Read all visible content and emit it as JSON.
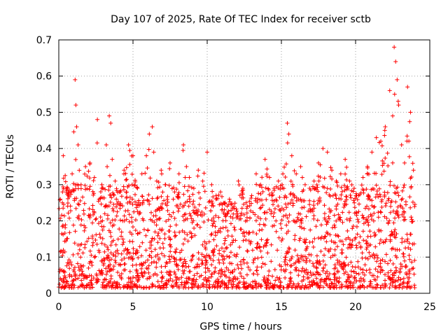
{
  "chart_data": {
    "type": "scatter",
    "title": "Day 107 of 2025, Rate Of TEC Index for receiver sctb",
    "xlabel": "GPS time / hours",
    "ylabel": "ROTI / TECUs",
    "xlim": [
      0,
      25
    ],
    "ylim": [
      0,
      0.7
    ],
    "xticks": [
      0,
      5,
      10,
      15,
      20,
      25
    ],
    "yticks": [
      0,
      0.1,
      0.2,
      0.3,
      0.4,
      0.5,
      0.6,
      0.7
    ],
    "xtick_labels": [
      "0",
      "5",
      "10",
      "15",
      "20",
      "25"
    ],
    "ytick_labels": [
      "0",
      "0.1",
      "0.2",
      "0.3",
      "0.4",
      "0.5",
      "0.6",
      "0.7"
    ],
    "grid": true,
    "legend": "none",
    "marker": "plus",
    "color": "#ff0000",
    "series": [
      {
        "x": [
          0.1,
          0.3,
          0.6,
          0.9,
          1.1,
          1.15,
          1.2,
          1.3,
          1.5,
          1.8,
          2.1,
          2.4,
          2.6,
          2.9,
          3.2,
          3.4,
          3.5,
          3.6,
          3.8,
          4.1,
          4.4,
          4.7,
          5.0,
          5.3,
          5.6,
          5.9,
          6.1,
          6.3,
          6.4,
          6.6,
          6.9,
          7.2,
          7.5,
          7.8,
          8.1,
          8.4,
          8.6,
          8.8,
          9.1,
          9.4,
          9.7,
          10.0,
          10.3,
          10.6,
          10.9,
          11.2,
          11.5,
          11.8,
          12.1,
          12.4,
          12.7,
          13.0,
          13.3,
          13.6,
          13.9,
          14.2,
          14.5,
          14.8,
          15.1,
          15.4,
          15.5,
          15.7,
          16.0,
          16.3,
          16.6,
          16.9,
          17.2,
          17.5,
          17.8,
          18.1,
          18.4,
          18.7,
          19.0,
          19.3,
          19.6,
          19.9,
          20.2,
          20.5,
          20.8,
          21.1,
          21.4,
          21.7,
          22.0,
          22.3,
          22.5,
          22.6,
          22.7,
          22.8,
          22.9,
          23.1,
          23.3,
          23.5,
          23.7,
          23.9
        ],
        "y": [
          0.26,
          0.38,
          0.29,
          0.33,
          0.59,
          0.52,
          0.46,
          0.41,
          0.3,
          0.35,
          0.36,
          0.32,
          0.48,
          0.3,
          0.41,
          0.49,
          0.47,
          0.37,
          0.31,
          0.28,
          0.34,
          0.41,
          0.38,
          0.29,
          0.33,
          0.38,
          0.44,
          0.46,
          0.39,
          0.31,
          0.34,
          0.3,
          0.36,
          0.28,
          0.33,
          0.41,
          0.35,
          0.32,
          0.29,
          0.34,
          0.31,
          0.39,
          0.3,
          0.27,
          0.28,
          0.25,
          0.26,
          0.24,
          0.31,
          0.29,
          0.24,
          0.27,
          0.33,
          0.3,
          0.37,
          0.32,
          0.29,
          0.31,
          0.33,
          0.47,
          0.44,
          0.38,
          0.33,
          0.35,
          0.3,
          0.29,
          0.31,
          0.36,
          0.4,
          0.39,
          0.34,
          0.31,
          0.33,
          0.37,
          0.31,
          0.29,
          0.27,
          0.32,
          0.35,
          0.39,
          0.43,
          0.42,
          0.46,
          0.56,
          0.49,
          0.68,
          0.64,
          0.59,
          0.52,
          0.41,
          0.36,
          0.57,
          0.5,
          0.34
        ]
      }
    ]
  }
}
